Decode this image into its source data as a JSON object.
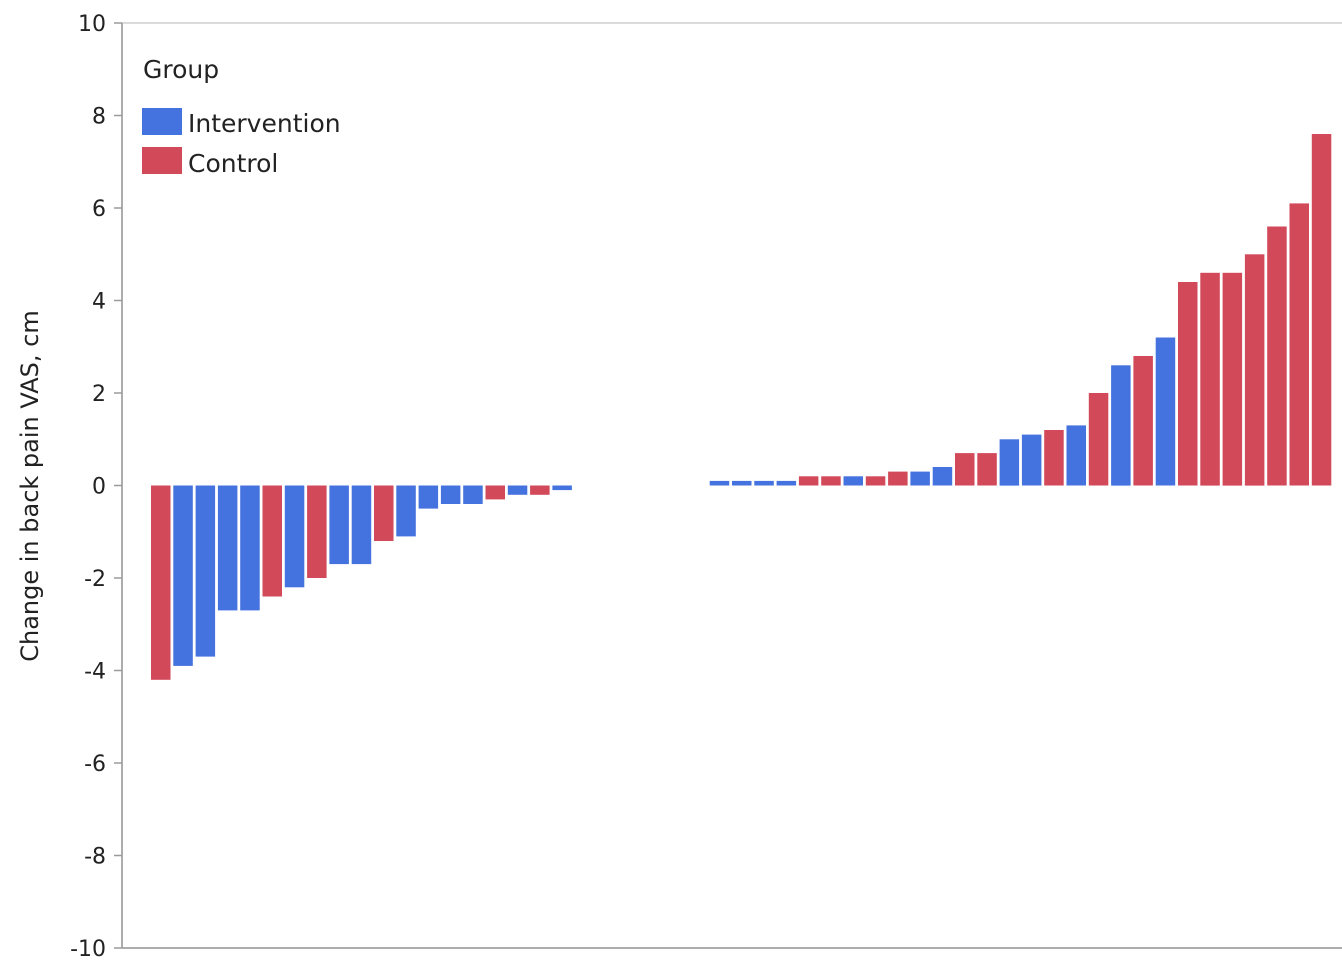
{
  "chart_data": {
    "type": "bar",
    "ylabel": "Change in back pain VAS, cm",
    "xlabel": "",
    "ylim": [
      -10,
      10
    ],
    "yticks": [
      10,
      8,
      6,
      4,
      2,
      0,
      -2,
      -4,
      -6,
      -8,
      -10
    ],
    "grid": false,
    "legend": {
      "title": "Group",
      "placement": "top-left",
      "entries": [
        {
          "name": "Intervention",
          "color": "#4472DE"
        },
        {
          "name": "Control",
          "color": "#D24A5A"
        }
      ]
    },
    "gap_after_index": 18,
    "bars": [
      {
        "group": "Control",
        "value": -4.2
      },
      {
        "group": "Intervention",
        "value": -3.9
      },
      {
        "group": "Intervention",
        "value": -3.7
      },
      {
        "group": "Intervention",
        "value": -2.7
      },
      {
        "group": "Intervention",
        "value": -2.7
      },
      {
        "group": "Control",
        "value": -2.4
      },
      {
        "group": "Intervention",
        "value": -2.2
      },
      {
        "group": "Control",
        "value": -2.0
      },
      {
        "group": "Intervention",
        "value": -1.7
      },
      {
        "group": "Intervention",
        "value": -1.7
      },
      {
        "group": "Control",
        "value": -1.2
      },
      {
        "group": "Intervention",
        "value": -1.1
      },
      {
        "group": "Intervention",
        "value": -0.5
      },
      {
        "group": "Intervention",
        "value": -0.4
      },
      {
        "group": "Intervention",
        "value": -0.4
      },
      {
        "group": "Control",
        "value": -0.3
      },
      {
        "group": "Intervention",
        "value": -0.2
      },
      {
        "group": "Control",
        "value": -0.2
      },
      {
        "group": "Intervention",
        "value": -0.1
      },
      {
        "group": "Intervention",
        "value": 0.1
      },
      {
        "group": "Intervention",
        "value": 0.1
      },
      {
        "group": "Intervention",
        "value": 0.1
      },
      {
        "group": "Intervention",
        "value": 0.1
      },
      {
        "group": "Control",
        "value": 0.2
      },
      {
        "group": "Control",
        "value": 0.2
      },
      {
        "group": "Intervention",
        "value": 0.2
      },
      {
        "group": "Control",
        "value": 0.2
      },
      {
        "group": "Control",
        "value": 0.3
      },
      {
        "group": "Intervention",
        "value": 0.3
      },
      {
        "group": "Intervention",
        "value": 0.4
      },
      {
        "group": "Control",
        "value": 0.7
      },
      {
        "group": "Control",
        "value": 0.7
      },
      {
        "group": "Intervention",
        "value": 1.0
      },
      {
        "group": "Intervention",
        "value": 1.1
      },
      {
        "group": "Control",
        "value": 1.2
      },
      {
        "group": "Intervention",
        "value": 1.3
      },
      {
        "group": "Control",
        "value": 2.0
      },
      {
        "group": "Intervention",
        "value": 2.6
      },
      {
        "group": "Control",
        "value": 2.8
      },
      {
        "group": "Intervention",
        "value": 3.2
      },
      {
        "group": "Control",
        "value": 4.4
      },
      {
        "group": "Control",
        "value": 4.6
      },
      {
        "group": "Control",
        "value": 4.6
      },
      {
        "group": "Control",
        "value": 5.0
      },
      {
        "group": "Control",
        "value": 5.6
      },
      {
        "group": "Control",
        "value": 6.1
      },
      {
        "group": "Control",
        "value": 7.6
      }
    ]
  }
}
